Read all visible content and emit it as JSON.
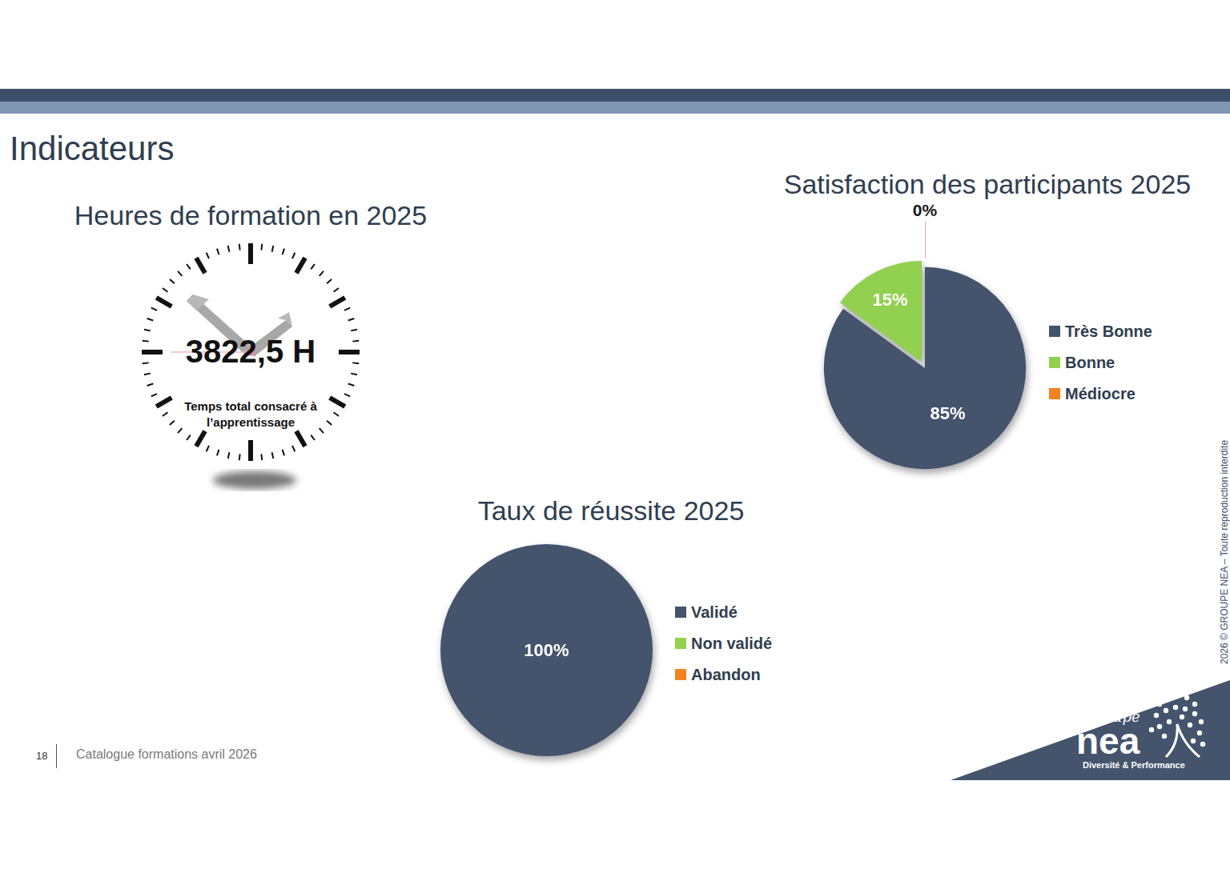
{
  "page": {
    "title": "Indicateurs",
    "hours": {
      "title": "Heures de formation en 2025",
      "value_label": "3822,5 H",
      "caption": "Temps total consacré à l’apprentissage"
    },
    "footer": {
      "page": "18",
      "text": "Catalogue formations avril 2026"
    },
    "copyright": "2026 © GROUPE NEA – Toute reproduction interdite",
    "logo": {
      "script": "Groupe",
      "name": "nea",
      "tagline": "Diversité & Performance"
    }
  },
  "chart_data": [
    {
      "type": "pie",
      "title": "Satisfaction des participants 2025",
      "categories": [
        "Très Bonne",
        "Bonne",
        "Médiocre"
      ],
      "values": [
        85,
        15,
        0
      ],
      "value_labels": [
        "85%",
        "15%",
        "0%"
      ],
      "colors": [
        "#44546c",
        "#92d050",
        "#f58220"
      ],
      "data_labels": true,
      "legend": "right"
    },
    {
      "type": "pie",
      "title": "Taux de réussite 2025",
      "categories": [
        "Validé",
        "Non validé",
        "Abandon"
      ],
      "values": [
        100,
        0,
        0
      ],
      "value_labels": [
        "100%",
        null,
        null
      ],
      "colors": [
        "#44546c",
        "#92d050",
        "#f58220"
      ],
      "data_labels": true,
      "legend": "right"
    }
  ]
}
